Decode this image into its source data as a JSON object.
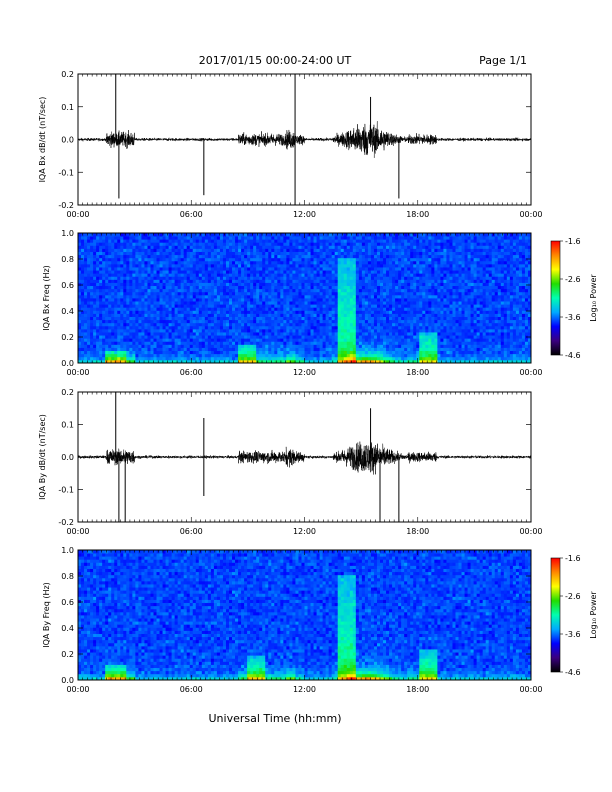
{
  "header": {
    "title": "2017/01/15  00:00-24:00 UT",
    "page": "Page 1/1"
  },
  "footer": {
    "xlabel": "Universal Time (hh:mm)"
  },
  "colorbar": {
    "label": "Log₁₀ Power",
    "ticks": [
      "-1.6",
      "-2.6",
      "-3.6",
      "-4.6"
    ],
    "range": [
      -4.6,
      -1.6
    ],
    "colors": [
      "#000000",
      "#3a0080",
      "#0000ff",
      "#00aaff",
      "#00ffb0",
      "#22dd00",
      "#ffff00",
      "#ff8800",
      "#ff0000"
    ]
  },
  "chart_data": [
    {
      "type": "line",
      "ylabel": "IQA Bx dB/dt (nT/sec)",
      "xlim": [
        "00:00",
        "24:00"
      ],
      "ylim": [
        -0.2,
        0.2
      ],
      "xticks": [
        "00:00",
        "06:00",
        "12:00",
        "18:00",
        "00:00"
      ],
      "yticks": [
        "0.2",
        "0.1",
        "0.0",
        "-0.1",
        "-0.2"
      ],
      "spikes": [
        {
          "t": "02:00",
          "peak": 0.2
        },
        {
          "t": "02:10",
          "peak": -0.18
        },
        {
          "t": "06:40",
          "peak": -0.17
        },
        {
          "t": "11:30",
          "peak": 0.2
        },
        {
          "t": "11:30",
          "peak": -0.2
        },
        {
          "t": "15:30",
          "peak": 0.13
        },
        {
          "t": "17:00",
          "peak": -0.18
        }
      ]
    },
    {
      "type": "heatmap",
      "ylabel": "IQA Bx Freq (Hz)",
      "xlim": [
        "00:00",
        "24:00"
      ],
      "ylim": [
        0,
        1.0
      ],
      "xticks": [
        "00:00",
        "06:00",
        "12:00",
        "18:00",
        "00:00"
      ],
      "yticks": [
        "1.0",
        "0.8",
        "0.6",
        "0.4",
        "0.2",
        "0.0"
      ],
      "events": [
        {
          "t": "02:00",
          "fmax": 0.1
        },
        {
          "t": "09:00",
          "fmax": 0.15
        },
        {
          "t": "14:15",
          "fmax": 0.8
        },
        {
          "t": "18:30",
          "fmax": 0.25
        }
      ]
    },
    {
      "type": "line",
      "ylabel": "IQA By dB/dt (nT/sec)",
      "xlim": [
        "00:00",
        "24:00"
      ],
      "ylim": [
        -0.2,
        0.2
      ],
      "xticks": [
        "00:00",
        "06:00",
        "12:00",
        "18:00",
        "00:00"
      ],
      "yticks": [
        "0.2",
        "0.1",
        "0.0",
        "-0.1",
        "-0.2"
      ],
      "spikes": [
        {
          "t": "02:00",
          "peak": 0.2
        },
        {
          "t": "02:10",
          "peak": -0.2
        },
        {
          "t": "02:30",
          "peak": -0.2
        },
        {
          "t": "06:40",
          "peak": 0.12
        },
        {
          "t": "06:40",
          "peak": -0.12
        },
        {
          "t": "15:30",
          "peak": 0.15
        },
        {
          "t": "16:00",
          "peak": -0.2
        },
        {
          "t": "17:00",
          "peak": -0.2
        }
      ]
    },
    {
      "type": "heatmap",
      "ylabel": "IQA By Freq (Hz)",
      "xlim": [
        "00:00",
        "24:00"
      ],
      "ylim": [
        0,
        1.0
      ],
      "xticks": [
        "00:00",
        "06:00",
        "12:00",
        "18:00",
        "00:00"
      ],
      "yticks": [
        "1.0",
        "0.8",
        "0.6",
        "0.4",
        "0.2",
        "0.0"
      ],
      "events": [
        {
          "t": "02:00",
          "fmax": 0.12
        },
        {
          "t": "09:30",
          "fmax": 0.2
        },
        {
          "t": "14:15",
          "fmax": 0.8
        },
        {
          "t": "18:30",
          "fmax": 0.25
        }
      ]
    }
  ]
}
